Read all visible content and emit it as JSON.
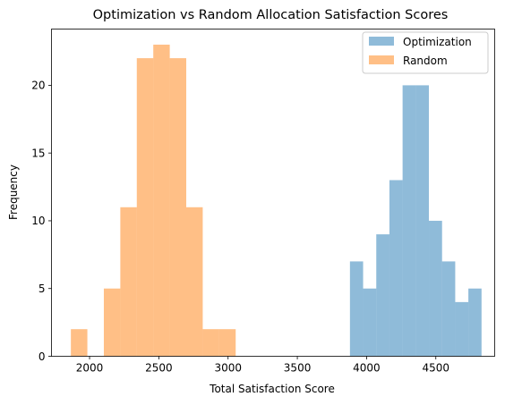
{
  "chart_data": {
    "type": "bar",
    "title": "Optimization vs Random Allocation Satisfaction Scores",
    "xlabel": "Total Satisfaction Score",
    "ylabel": "Frequency",
    "xlim": [
      1725,
      4925
    ],
    "ylim": [
      0,
      24.15
    ],
    "xticks": [
      2000,
      2500,
      3000,
      3500,
      4000,
      4500
    ],
    "yticks": [
      0,
      5,
      10,
      15,
      20
    ],
    "legend_position": "top-right",
    "series": [
      {
        "name": "Optimization",
        "color": "#1f77b4",
        "opacity": 0.5,
        "bins": [
          {
            "x0": 3880,
            "x1": 3975,
            "count": 7
          },
          {
            "x0": 3975,
            "x1": 4070,
            "count": 5
          },
          {
            "x0": 4070,
            "x1": 4165,
            "count": 9
          },
          {
            "x0": 4165,
            "x1": 4260,
            "count": 13
          },
          {
            "x0": 4260,
            "x1": 4355,
            "count": 20
          },
          {
            "x0": 4355,
            "x1": 4450,
            "count": 20
          },
          {
            "x0": 4450,
            "x1": 4545,
            "count": 10
          },
          {
            "x0": 4545,
            "x1": 4640,
            "count": 7
          },
          {
            "x0": 4640,
            "x1": 4735,
            "count": 4
          },
          {
            "x0": 4735,
            "x1": 4830,
            "count": 5
          }
        ]
      },
      {
        "name": "Random",
        "color": "#ff7f0e",
        "opacity": 0.5,
        "bins": [
          {
            "x0": 1865,
            "x1": 1984,
            "count": 2
          },
          {
            "x0": 1984,
            "x1": 2103,
            "count": 0
          },
          {
            "x0": 2103,
            "x1": 2222,
            "count": 5
          },
          {
            "x0": 2222,
            "x1": 2341,
            "count": 11
          },
          {
            "x0": 2341,
            "x1": 2460,
            "count": 22
          },
          {
            "x0": 2460,
            "x1": 2579,
            "count": 23
          },
          {
            "x0": 2579,
            "x1": 2698,
            "count": 22
          },
          {
            "x0": 2698,
            "x1": 2817,
            "count": 11
          },
          {
            "x0": 2817,
            "x1": 2936,
            "count": 2
          },
          {
            "x0": 2936,
            "x1": 3055,
            "count": 2
          }
        ]
      }
    ]
  }
}
